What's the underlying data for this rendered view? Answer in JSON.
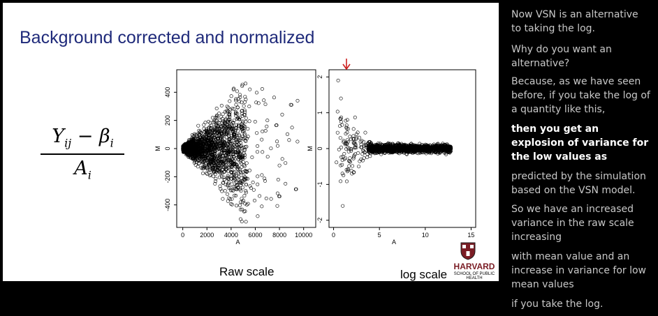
{
  "slide": {
    "title": "Background corrected and normalized",
    "formula": {
      "numerator": "Y",
      "num_sub": "ij",
      "minus": " − β",
      "beta_sub": "i",
      "denominator": "A",
      "den_sub": "i"
    },
    "raw_caption": "Raw scale",
    "log_caption": "log scale",
    "logo_name": "HARVARD",
    "logo_sub": "SCHOOL OF PUBLIC HEALTH",
    "arrow_color": "#cc1f1f"
  },
  "chart_data": [
    {
      "type": "scatter",
      "title": "",
      "xlabel": "A",
      "ylabel": "M",
      "xlim": [
        -500,
        11000
      ],
      "ylim": [
        -560,
        560
      ],
      "xticks": [
        "0",
        "2000",
        "4000",
        "6000",
        "8000",
        "10000"
      ],
      "yticks": [
        "-400",
        "-200",
        "0",
        "200",
        "400"
      ],
      "description_points": [
        [
          1500,
          0
        ],
        [
          2000,
          100
        ],
        [
          2500,
          -150
        ],
        [
          3000,
          250
        ],
        [
          3500,
          -300
        ],
        [
          4200,
          420
        ],
        [
          4800,
          -380
        ],
        [
          5500,
          300
        ],
        [
          6200,
          -480
        ],
        [
          7000,
          200
        ],
        [
          8000,
          -120
        ],
        [
          8500,
          -250
        ],
        [
          9000,
          310
        ],
        [
          9500,
          340
        ]
      ]
    },
    {
      "type": "scatter",
      "title": "",
      "xlabel": "A",
      "ylabel": "M",
      "xlim": [
        -0.5,
        15.5
      ],
      "ylim": [
        -2.2,
        2.2
      ],
      "xticks": [
        "0",
        "5",
        "10",
        "15"
      ],
      "yticks": [
        "-2",
        "-1",
        "0",
        "1",
        "2"
      ],
      "description_points": [
        [
          0.5,
          1.9
        ],
        [
          0.8,
          1.4
        ],
        [
          1.0,
          -1.6
        ],
        [
          1.5,
          0.8
        ],
        [
          2.0,
          -0.7
        ],
        [
          2.5,
          0.4
        ],
        [
          3.0,
          -0.3
        ],
        [
          4.0,
          0.1
        ],
        [
          6.0,
          0.0
        ],
        [
          8.0,
          0.05
        ],
        [
          10.0,
          0.0
        ],
        [
          12.0,
          0.05
        ],
        [
          12.8,
          0.0
        ]
      ]
    }
  ],
  "transcript": [
    {
      "text": "Now VSN is an alternative to taking the log.",
      "active": false
    },
    {
      "text": "Why do you want an alternative?",
      "active": false
    },
    {
      "text": "Because, as we have seen before, if you take the log of a quantity like this,",
      "active": false
    },
    {
      "text": "then you get an explosion of variance for the low values as",
      "active": true
    },
    {
      "text": "predicted by the simulation based on the VSN model.",
      "active": false
    },
    {
      "text": "So we have an increased variance in the raw scale increasing",
      "active": false
    },
    {
      "text": "with mean value and an increase in variance for low mean values",
      "active": false
    },
    {
      "text": "if you take the log.",
      "active": false
    }
  ]
}
